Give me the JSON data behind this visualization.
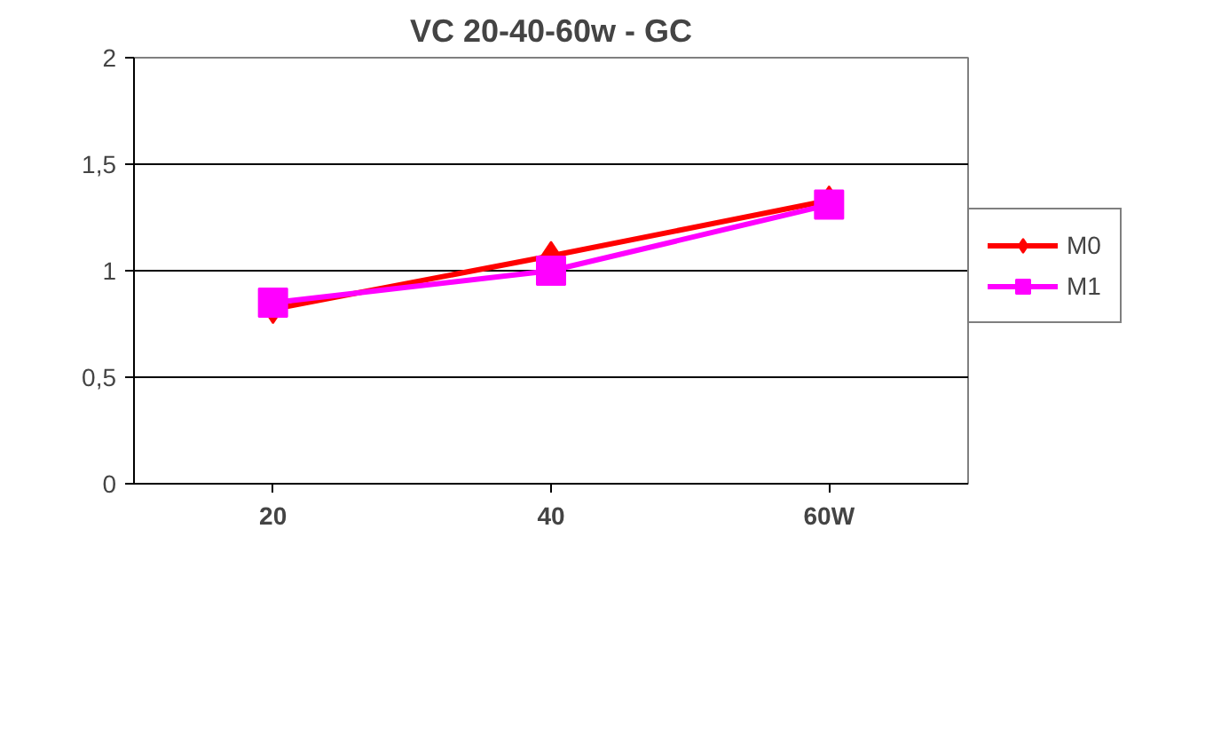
{
  "chart_data": {
    "type": "line",
    "title": "VC 20-40-60w - GC",
    "categories": [
      "20",
      "40",
      "60W"
    ],
    "series": [
      {
        "name": "M0",
        "color": "#ff0000",
        "marker": "diamond",
        "values": [
          0.82,
          1.07,
          1.33
        ]
      },
      {
        "name": "M1",
        "color": "#ff00ff",
        "marker": "square",
        "values": [
          0.85,
          1.0,
          1.31
        ]
      }
    ],
    "ylim": [
      0,
      2
    ],
    "yticks": [
      0,
      {
        "value": 0.5,
        "label": "0,5"
      },
      1,
      {
        "value": 1.5,
        "label": "1,5"
      },
      2
    ],
    "grid": "y",
    "legend": "right"
  }
}
